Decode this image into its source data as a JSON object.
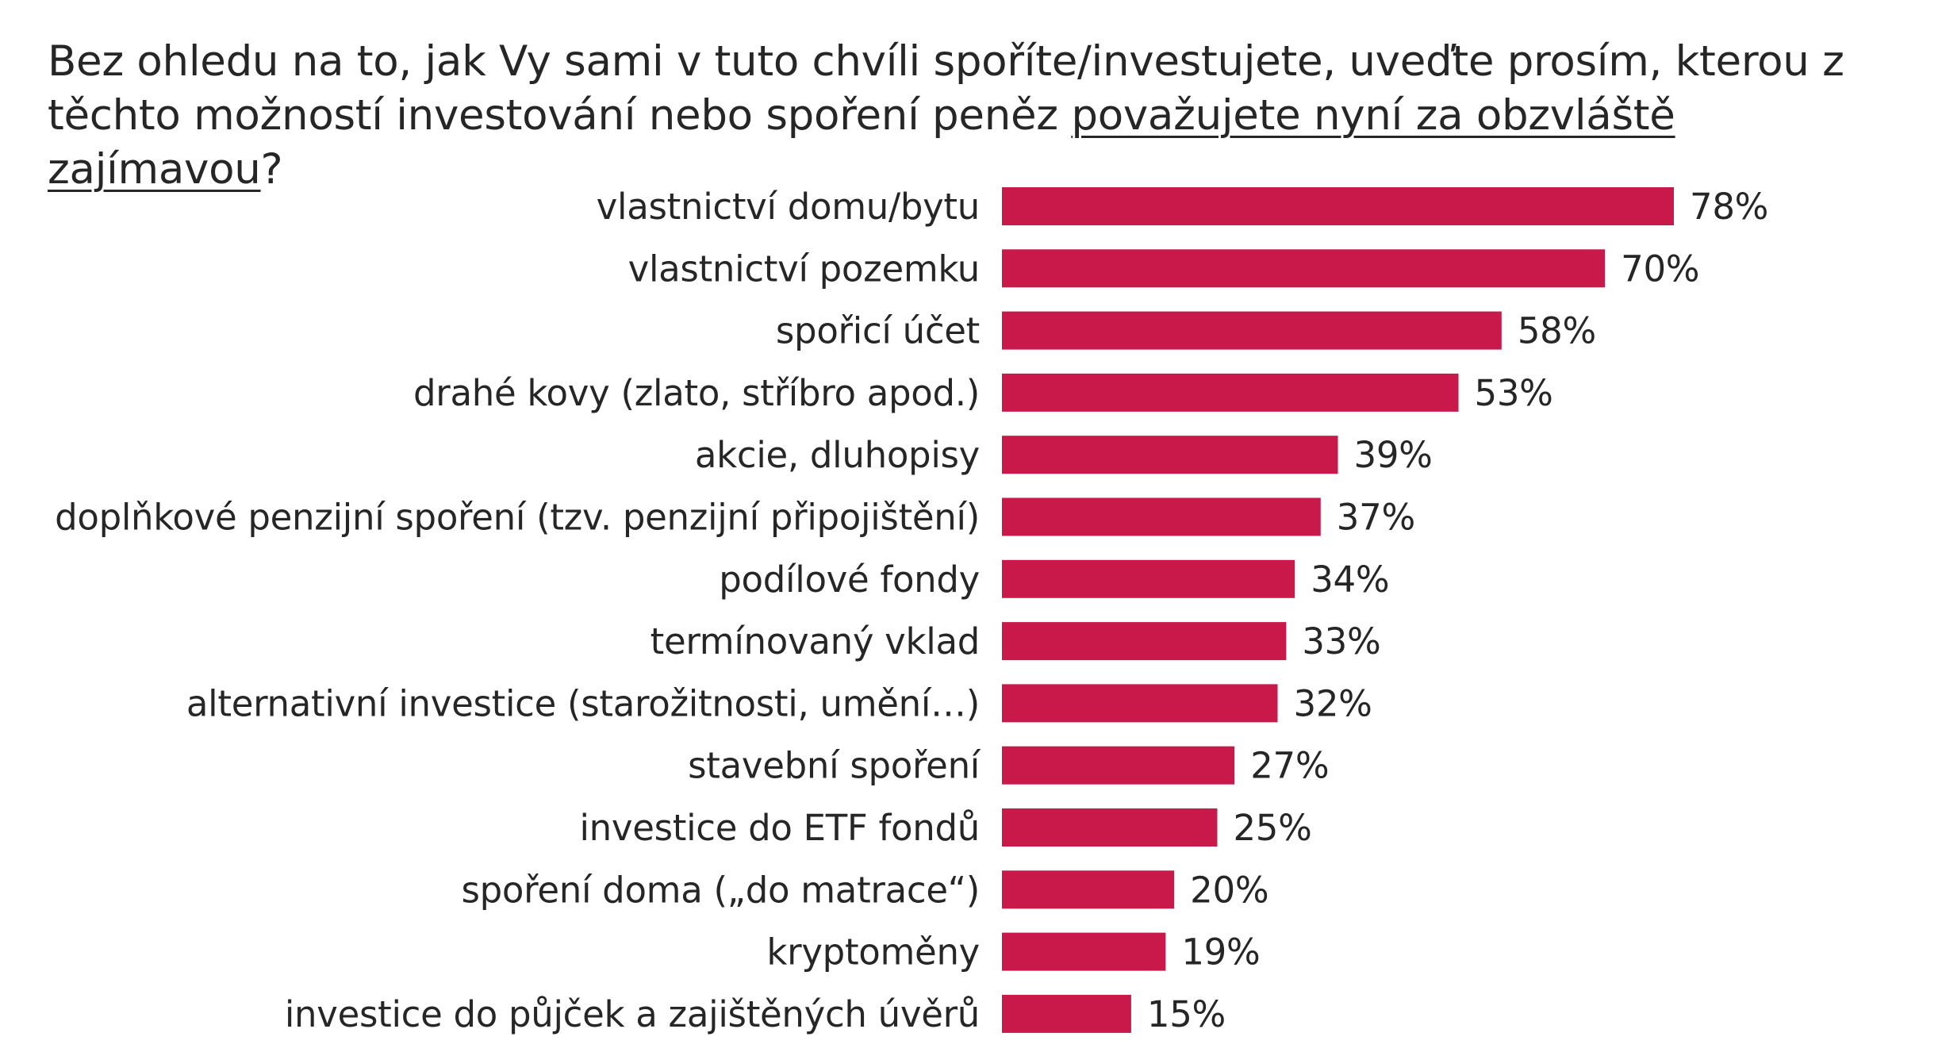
{
  "chart_data": {
    "type": "bar",
    "orientation": "horizontal",
    "title_part1": "Bez ohledu na to, jak Vy sami v tuto chvíli spoříte/investujete, uveďte prosím, kterou z těchto možností investování nebo spoření peněz ",
    "title_underlined": "považujete nyní za obzvláště zajímavou",
    "title_part2": "?",
    "categories": [
      "vlastnictví domu/bytu",
      "vlastnictví pozemku",
      "spořicí účet",
      "drahé kovy (zlato, stříbro apod.)",
      "akcie, dluhopisy",
      "doplňkové penzijní spoření (tzv. penzijní připojištění)",
      "podílové fondy",
      "termínovaný vklad",
      "alternativní investice (starožitnosti, umění…)",
      "stavební spoření",
      "investice do ETF fondů",
      "spoření doma („do matrace“)",
      "kryptoměny",
      "investice do půjček a zajištěných úvěrů"
    ],
    "values": [
      78,
      70,
      58,
      53,
      39,
      37,
      34,
      33,
      32,
      27,
      25,
      20,
      19,
      15
    ],
    "value_labels": [
      "78%",
      "70%",
      "58%",
      "53%",
      "39%",
      "37%",
      "34%",
      "33%",
      "32%",
      "27%",
      "25%",
      "20%",
      "19%",
      "15%"
    ],
    "unit": "%",
    "bar_color": "#c8194a",
    "xlim": [
      0,
      78
    ],
    "grid": false,
    "legend": "none"
  }
}
